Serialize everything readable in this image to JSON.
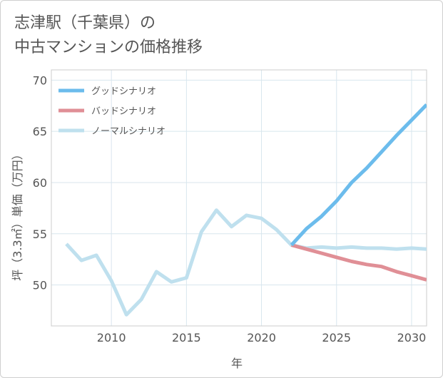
{
  "title_lines": [
    "志津駅（千葉県）の",
    "中古マンションの価格推移"
  ],
  "colors": {
    "good": "#6cbcec",
    "bad": "#e08f96",
    "normal": "#bfe0ee",
    "grid": "#d8e6ee",
    "text": "#555555"
  },
  "chart_data": {
    "type": "line",
    "xlabel": "年",
    "ylabel": "坪（3.3㎡）単価（万円）",
    "xlim": [
      2006,
      2031
    ],
    "ylim": [
      46,
      71
    ],
    "xticks": [
      2010,
      2015,
      2020,
      2025,
      2030
    ],
    "yticks": [
      50,
      55,
      60,
      65,
      70
    ],
    "legend_position": "top-left",
    "series": [
      {
        "name": "グッドシナリオ",
        "key": "good",
        "x": [
          2022,
          2023,
          2024,
          2025,
          2026,
          2027,
          2028,
          2029,
          2030,
          2031
        ],
        "values": [
          53.9,
          55.5,
          56.7,
          58.2,
          60.0,
          61.4,
          63.0,
          64.6,
          66.1,
          67.6
        ]
      },
      {
        "name": "バッドシナリオ",
        "key": "bad",
        "x": [
          2022,
          2023,
          2024,
          2025,
          2026,
          2027,
          2028,
          2029,
          2030,
          2031
        ],
        "values": [
          53.9,
          53.5,
          53.1,
          52.7,
          52.3,
          52.0,
          51.8,
          51.3,
          50.9,
          50.5
        ]
      },
      {
        "name": "ノーマルシナリオ",
        "key": "normal",
        "x": [
          2007,
          2008,
          2009,
          2010,
          2011,
          2012,
          2013,
          2014,
          2015,
          2016,
          2017,
          2018,
          2019,
          2020,
          2021,
          2022,
          2023,
          2024,
          2025,
          2026,
          2027,
          2028,
          2029,
          2030,
          2031
        ],
        "values": [
          54.0,
          52.4,
          52.9,
          50.4,
          47.1,
          48.6,
          51.3,
          50.3,
          50.7,
          55.2,
          57.3,
          55.7,
          56.8,
          56.5,
          55.4,
          53.9,
          53.6,
          53.7,
          53.6,
          53.7,
          53.6,
          53.6,
          53.5,
          53.6,
          53.5
        ]
      }
    ]
  }
}
